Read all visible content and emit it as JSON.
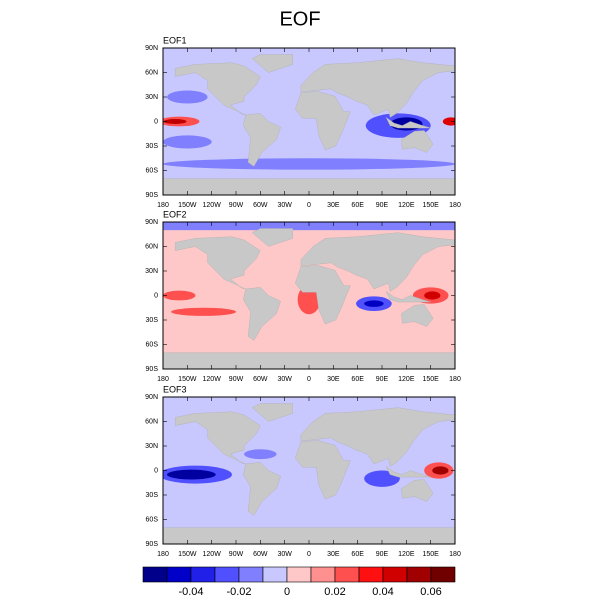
{
  "title": "EOF",
  "panels": [
    {
      "label": "EOF1"
    },
    {
      "label": "EOF2"
    },
    {
      "label": "EOF3"
    }
  ],
  "lat_ticks": [
    {
      "value": 90,
      "label": "90N"
    },
    {
      "value": 60,
      "label": "60N"
    },
    {
      "value": 30,
      "label": "30N"
    },
    0,
    {
      "value": -30,
      "label": "30S"
    },
    {
      "value": -60,
      "label": "60S"
    },
    {
      "value": -90,
      "label": "90S"
    }
  ],
  "lon_ticks": [
    {
      "value": -180,
      "label": "180"
    },
    {
      "value": -150,
      "label": "150W"
    },
    {
      "value": -120,
      "label": "120W"
    },
    {
      "value": -90,
      "label": "90W"
    },
    {
      "value": -60,
      "label": "60W"
    },
    {
      "value": -30,
      "label": "30W"
    },
    0,
    {
      "value": 30,
      "label": "30E"
    },
    {
      "value": 60,
      "label": "60E"
    },
    {
      "value": 90,
      "label": "90E"
    },
    {
      "value": 120,
      "label": "120E"
    },
    {
      "value": 150,
      "label": "150E"
    },
    {
      "value": 180,
      "label": "180"
    }
  ],
  "colorbar": {
    "levels": [
      -0.05,
      -0.04,
      -0.03,
      -0.02,
      -0.01,
      0,
      0.01,
      0.02,
      0.03,
      0.04,
      0.05,
      0.06
    ],
    "colors": [
      "#00008b",
      "#0000c8",
      "#2020e8",
      "#5050ff",
      "#8080ff",
      "#c8c8ff",
      "#ffc8c8",
      "#ff9090",
      "#ff5050",
      "#ff1010",
      "#d00000",
      "#a00000",
      "#700000"
    ],
    "ticks": [
      -0.04,
      -0.02,
      0,
      0.02,
      0.04,
      0.06
    ]
  }
}
